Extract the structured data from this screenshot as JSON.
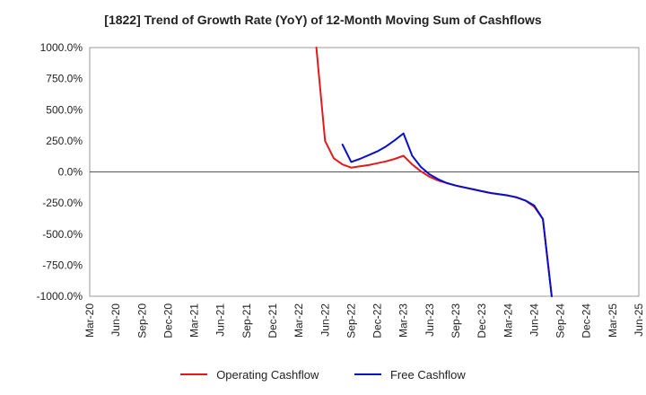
{
  "chart_data": {
    "type": "line",
    "title": "[1822]  Trend of Growth Rate (YoY) of 12-Month Moving Sum of Cashflows",
    "xlabel": "",
    "ylabel": "",
    "x_tick_labels": [
      "Mar-20",
      "Jun-20",
      "Sep-20",
      "Dec-20",
      "Mar-21",
      "Jun-21",
      "Sep-21",
      "Dec-21",
      "Mar-22",
      "Jun-22",
      "Sep-22",
      "Dec-22",
      "Mar-23",
      "Jun-23",
      "Sep-23",
      "Dec-23",
      "Mar-24",
      "Jun-24",
      "Sep-24",
      "Dec-24",
      "Mar-25",
      "Jun-25"
    ],
    "y_tick_labels": [
      "1000.0%",
      "750.0%",
      "500.0%",
      "250.0%",
      "0.0%",
      "-250.0%",
      "-500.0%",
      "-750.0%",
      "-1000.0%"
    ],
    "y_ticks": [
      1000,
      750,
      500,
      250,
      0,
      -250,
      -500,
      -750,
      -1000
    ],
    "ylim": [
      -1000,
      1000
    ],
    "grid": true,
    "legend_position": "bottom",
    "series": [
      {
        "name": "Operating Cashflow",
        "color": "#e31a1c",
        "x": [
          "2022-05",
          "2022-06",
          "2022-07",
          "2022-08",
          "2022-09",
          "2022-10",
          "2022-11",
          "2022-12",
          "2023-01",
          "2023-02",
          "2023-03",
          "2023-04",
          "2023-05",
          "2023-06",
          "2023-07",
          "2023-08",
          "2023-09",
          "2023-10",
          "2023-11",
          "2023-12",
          "2024-01",
          "2024-02",
          "2024-03",
          "2024-04",
          "2024-05",
          "2024-06",
          "2024-07",
          "2024-08"
        ],
        "values": [
          1000,
          250,
          110,
          60,
          35,
          45,
          55,
          70,
          85,
          105,
          130,
          60,
          5,
          -40,
          -70,
          -90,
          -110,
          -125,
          -140,
          -155,
          -170,
          -180,
          -190,
          -205,
          -230,
          -280,
          -380,
          -1000
        ]
      },
      {
        "name": "Free Cashflow",
        "color": "#0a10c8",
        "x": [
          "2022-08",
          "2022-09",
          "2022-10",
          "2022-11",
          "2022-12",
          "2023-01",
          "2023-02",
          "2023-03",
          "2023-04",
          "2023-05",
          "2023-06",
          "2023-07",
          "2023-08",
          "2023-09",
          "2023-10",
          "2023-11",
          "2023-12",
          "2024-01",
          "2024-02",
          "2024-03",
          "2024-04",
          "2024-05",
          "2024-06",
          "2024-07",
          "2024-08"
        ],
        "values": [
          220,
          80,
          105,
          135,
          165,
          205,
          255,
          310,
          130,
          40,
          -20,
          -60,
          -90,
          -110,
          -125,
          -140,
          -155,
          -170,
          -180,
          -190,
          -205,
          -230,
          -270,
          -380,
          -1000
        ]
      }
    ]
  }
}
